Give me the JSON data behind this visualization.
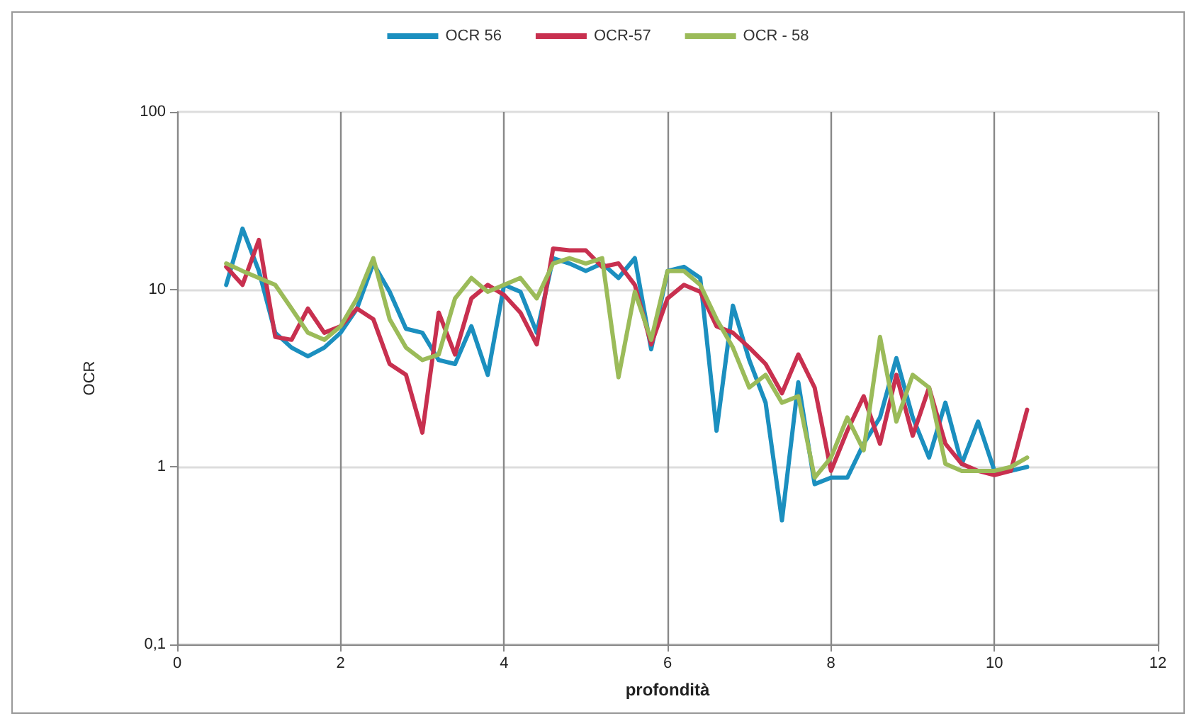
{
  "chart_data": {
    "type": "line",
    "xlabel": "profondità",
    "ylabel": "OCR",
    "log": "y",
    "grid": true,
    "legend": "top",
    "marker": "none",
    "line_style": "solid",
    "x": [
      0.6,
      0.8,
      1.0,
      1.2,
      1.4,
      1.6,
      1.8,
      2.0,
      2.2,
      2.4,
      2.6,
      2.8,
      3.0,
      3.2,
      3.4,
      3.6,
      3.8,
      4.0,
      4.2,
      4.4,
      4.6,
      4.8,
      5.0,
      5.2,
      5.4,
      5.6,
      5.8,
      6.0,
      6.2,
      6.4,
      6.6,
      6.8,
      7.0,
      7.2,
      7.4,
      7.6,
      7.8,
      8.0,
      8.2,
      8.4,
      8.6,
      8.8,
      9.0,
      9.2,
      9.4,
      9.6,
      9.8,
      10.0,
      10.2,
      10.4
    ],
    "xlim": [
      0,
      12
    ],
    "xticks": [
      0,
      2,
      4,
      6,
      8,
      10,
      12
    ],
    "ylim": [
      0.1,
      100
    ],
    "yticks": [
      {
        "value": 0.1,
        "label": "0,1"
      },
      1,
      10,
      100
    ],
    "series": [
      {
        "name": "OCR 56",
        "color": "#1b8fbf",
        "values": [
          10.6,
          22,
          12.7,
          5.7,
          4.7,
          4.2,
          4.7,
          5.7,
          7.8,
          14,
          9.7,
          6,
          5.7,
          4,
          3.8,
          6.2,
          3.3,
          10.6,
          9.7,
          5.7,
          15,
          14,
          12.7,
          14,
          11.6,
          15,
          4.6,
          12.7,
          13.4,
          11.6,
          1.6,
          8.1,
          4,
          2.3,
          0.5,
          3,
          0.8,
          0.87,
          0.87,
          1.35,
          1.9,
          4.1,
          1.9,
          1.13,
          2.3,
          1.04,
          1.8,
          0.95,
          0.95,
          1.0
        ]
      },
      {
        "name": "OCR-57",
        "color": "#c8304f",
        "values": [
          13.4,
          10.6,
          19,
          5.4,
          5.2,
          7.8,
          5.7,
          6.2,
          7.8,
          6.8,
          3.8,
          3.3,
          1.56,
          7.4,
          4.3,
          8.9,
          10.6,
          9.3,
          7.4,
          4.9,
          17,
          16.6,
          16.6,
          13.4,
          14,
          10.6,
          4.9,
          8.9,
          10.6,
          9.7,
          6.2,
          5.7,
          4.7,
          3.8,
          2.6,
          4.3,
          2.8,
          0.95,
          1.6,
          2.5,
          1.35,
          3.3,
          1.5,
          2.8,
          1.35,
          1.04,
          0.95,
          0.9,
          0.95,
          2.1
        ]
      },
      {
        "name": "OCR - 58",
        "color": "#9bbb59",
        "values": [
          14,
          12.7,
          11.6,
          10.6,
          7.8,
          5.7,
          5.2,
          6.2,
          8.9,
          15,
          6.8,
          4.7,
          4,
          4.3,
          8.9,
          11.6,
          9.7,
          10.6,
          11.6,
          8.9,
          14,
          15,
          14,
          15,
          3.2,
          9.7,
          5.2,
          12.7,
          12.7,
          10.6,
          6.8,
          4.7,
          2.8,
          3.3,
          2.3,
          2.5,
          0.87,
          1.13,
          1.9,
          1.24,
          5.4,
          1.8,
          3.3,
          2.8,
          1.04,
          0.95,
          0.95,
          0.95,
          1.0,
          1.13
        ]
      }
    ]
  }
}
